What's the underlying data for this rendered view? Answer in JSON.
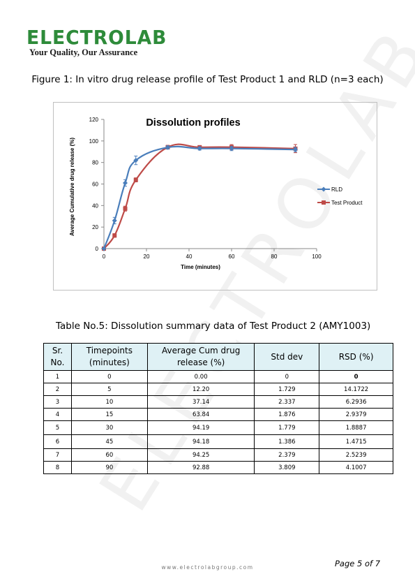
{
  "logo": {
    "name": "ELECTROLAB",
    "tagline": "Your Quality, Our Assurance"
  },
  "watermark": "ELECTROLAB",
  "figure_caption": "Figure 1: In vitro drug release profile of Test Product 1 and RLD (n=3 each)",
  "chart_data": {
    "type": "line",
    "title": "Dissolution profiles",
    "xlabel": "Time (minutes)",
    "ylabel": "Average Cumulative drug release (%)",
    "xlim": [
      0,
      100
    ],
    "ylim": [
      0,
      120
    ],
    "x_ticks": [
      "0",
      "20",
      "40",
      "60",
      "80",
      "100"
    ],
    "y_ticks": [
      "0",
      "20",
      "40",
      "60",
      "80",
      "100",
      "120"
    ],
    "legend_position": "right",
    "grid": false,
    "x": [
      0,
      5,
      10,
      15,
      30,
      45,
      60,
      90
    ],
    "series": [
      {
        "name": "RLD",
        "color": "#4a7ebb",
        "marker": "diamond",
        "values": [
          0,
          26,
          61,
          82,
          94,
          93,
          93,
          92
        ],
        "errors": [
          0,
          3,
          3,
          4,
          1.5,
          1.5,
          2,
          2
        ]
      },
      {
        "name": "Test Product",
        "color": "#be4b48",
        "marker": "square",
        "values": [
          0,
          12.2,
          37.14,
          63.84,
          94.19,
          94.18,
          94.25,
          92.88
        ],
        "errors": [
          0,
          1.7,
          2.3,
          1.9,
          1.8,
          1.4,
          2.4,
          3.8
        ]
      }
    ]
  },
  "table_caption": "Table No.5: Dissolution summary data of Test Product 2 (AMY1003)",
  "table": {
    "headers": [
      "Sr. No.",
      "Timepoints (minutes)",
      "Average Cum drug release (%)",
      "Std dev",
      "RSD (%)"
    ],
    "rows": [
      [
        "1",
        "0",
        "0.00",
        "0",
        "0"
      ],
      [
        "2",
        "5",
        "12.20",
        "1.729",
        "14.1722"
      ],
      [
        "3",
        "10",
        "37.14",
        "2.337",
        "6.2936"
      ],
      [
        "4",
        "15",
        "63.84",
        "1.876",
        "2.9379"
      ],
      [
        "5",
        "30",
        "94.19",
        "1.779",
        "1.8887"
      ],
      [
        "6",
        "45",
        "94.18",
        "1.386",
        "1.4715"
      ],
      [
        "7",
        "60",
        "94.25",
        "2.379",
        "2.5239"
      ],
      [
        "8",
        "90",
        "92.88",
        "3.809",
        "4.1007"
      ]
    ]
  },
  "footer": {
    "url": "www.electrolabgroup.com",
    "page": "Page 5 of 7"
  },
  "colors": {
    "logo_green": "#2e8b3a",
    "header_bg": "#dff1f5"
  }
}
